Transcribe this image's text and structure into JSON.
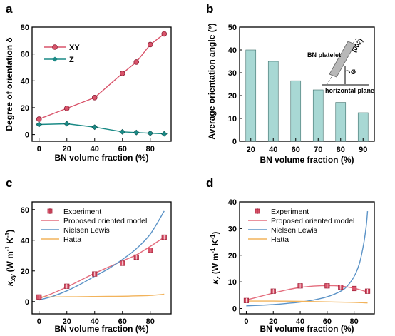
{
  "figure": {
    "panel_letters": [
      "a",
      "b",
      "c",
      "d"
    ]
  },
  "chart_data": [
    {
      "panel": "a",
      "type": "line",
      "x": [
        0,
        20,
        40,
        60,
        70,
        80,
        90
      ],
      "series": [
        {
          "name": "XY",
          "color": "#d9536a",
          "marker": "circle",
          "values": [
            11.5,
            19.5,
            27.5,
            45.5,
            54,
            67,
            75
          ]
        },
        {
          "name": "Z",
          "color": "#1a8a86",
          "marker": "diamond",
          "values": [
            7.5,
            8,
            5.5,
            2,
            1.5,
            1,
            0.5
          ]
        }
      ],
      "xlabel": "BN volume fraction (%)",
      "ylabel": "Degree of orientation δ",
      "xlim": [
        -5,
        95
      ],
      "ylim": [
        -5,
        80
      ],
      "xticks": [
        0,
        20,
        40,
        60,
        80
      ],
      "yticks": [
        0,
        20,
        40,
        60,
        80
      ],
      "legend": "top-left"
    },
    {
      "panel": "b",
      "type": "bar",
      "categories": [
        "20",
        "40",
        "60",
        "70",
        "80",
        "90"
      ],
      "values": [
        40,
        35,
        26.5,
        22.5,
        17,
        12.5
      ],
      "bar_color": "#a8d8d4",
      "xlabel": "BN volume fraction (%)",
      "ylabel": "Average orientation angle (°)",
      "ylim": [
        0,
        50
      ],
      "yticks": [
        0,
        10,
        20,
        30,
        40,
        50
      ],
      "inset": {
        "platelet_label": "BN platelet",
        "plane_label": "(002)",
        "angle_label": "Ø",
        "horizontal_label": "horizontal plane"
      }
    },
    {
      "panel": "c",
      "type": "scatter",
      "ylabel_main": "κ",
      "ylabel_sub": "xy",
      "ylabel_units": "(W m",
      "ylabel_exp1": "-1",
      "ylabel_mid": " K",
      "ylabel_exp2": "-1",
      "ylabel_end": ")",
      "xlabel": "BN volume fraction (%)",
      "xlim": [
        -5,
        95
      ],
      "ylim": [
        -8,
        65
      ],
      "xticks": [
        0,
        20,
        40,
        60,
        80
      ],
      "yticks": [
        0,
        20,
        40,
        60
      ],
      "experiment": {
        "name": "Experiment",
        "color": "#d9536a",
        "x": [
          0,
          20,
          40,
          60,
          70,
          80,
          90
        ],
        "y": [
          3,
          10,
          18,
          25,
          29,
          33.5,
          42
        ],
        "err": [
          1,
          0.8,
          1,
          1.2,
          1,
          1.3,
          1.5
        ]
      },
      "curves": [
        {
          "name": "Proposed oriented model",
          "color": "#e46e7e",
          "x": [
            0,
            10,
            20,
            30,
            40,
            50,
            60,
            70,
            80,
            90
          ],
          "y": [
            2,
            5.5,
            9.5,
            14,
            18.5,
            22.5,
            26.5,
            30.5,
            36,
            42
          ]
        },
        {
          "name": "Nielsen Lewis",
          "color": "#5b93c7",
          "x": [
            0,
            10,
            20,
            30,
            40,
            50,
            60,
            70,
            80,
            90
          ],
          "y": [
            1,
            3.5,
            7,
            11.5,
            16.5,
            21.5,
            27.5,
            34.5,
            44,
            59
          ]
        },
        {
          "name": "Hatta",
          "color": "#f2b35b",
          "x": [
            0,
            10,
            20,
            30,
            40,
            50,
            60,
            70,
            80,
            90
          ],
          "y": [
            3,
            3,
            3.1,
            3.2,
            3.3,
            3.4,
            3.5,
            3.7,
            4,
            4.8
          ]
        }
      ],
      "legend": "top-left"
    },
    {
      "panel": "d",
      "type": "scatter",
      "ylabel_main": "κ",
      "ylabel_sub": "z",
      "ylabel_units": "(W m",
      "ylabel_exp1": "-1",
      "ylabel_mid": " K",
      "ylabel_exp2": "-1",
      "ylabel_end": ")",
      "xlabel": "BN volume fraction (%)",
      "xlim": [
        -5,
        95
      ],
      "ylim": [
        -2,
        40
      ],
      "xticks": [
        0,
        20,
        40,
        60,
        80
      ],
      "yticks": [
        0,
        10,
        20,
        30,
        40
      ],
      "experiment": {
        "name": "Experiment",
        "color": "#d9536a",
        "x": [
          0,
          20,
          40,
          60,
          70,
          80,
          90
        ],
        "y": [
          3,
          6.5,
          8.5,
          8.5,
          8,
          7.5,
          6.5
        ],
        "err": [
          0.5,
          0.5,
          0.5,
          0.6,
          0.5,
          0.6,
          0.6
        ]
      },
      "curves": [
        {
          "name": "Proposed oriented model",
          "color": "#e46e7e",
          "x": [
            0,
            10,
            20,
            30,
            40,
            50,
            60,
            70,
            80,
            90
          ],
          "y": [
            3.2,
            4.5,
            5.8,
            7,
            7.9,
            8.4,
            8.6,
            8.4,
            7.6,
            6.2
          ]
        },
        {
          "name": "Nielsen Lewis",
          "color": "#5b93c7",
          "x": [
            0,
            10,
            20,
            30,
            40,
            50,
            60,
            70,
            75,
            80,
            84,
            87,
            89,
            90
          ],
          "y": [
            1,
            1.2,
            1.5,
            1.9,
            2.4,
            3.2,
            4.4,
            6.5,
            8.5,
            12,
            17,
            24,
            31,
            36.5
          ]
        },
        {
          "name": "Hatta",
          "color": "#f2b35b",
          "x": [
            0,
            10,
            20,
            30,
            40,
            50,
            60,
            70,
            80,
            90
          ],
          "y": [
            2.8,
            2.8,
            2.8,
            2.75,
            2.7,
            2.6,
            2.5,
            2.4,
            2.3,
            2.1
          ]
        }
      ],
      "legend": "top-left"
    }
  ]
}
